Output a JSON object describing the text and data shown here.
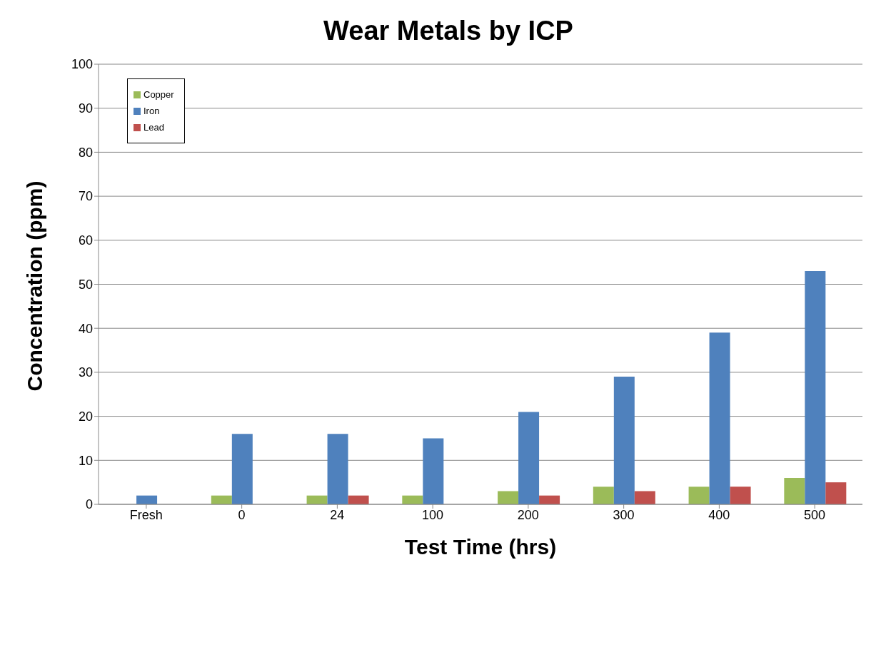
{
  "chart_data": {
    "type": "bar",
    "title": "Wear Metals by ICP",
    "xlabel": "Test Time (hrs)",
    "ylabel": "Concentration (ppm)",
    "categories": [
      "Fresh",
      "0",
      "24",
      "100",
      "200",
      "300",
      "400",
      "500"
    ],
    "series": [
      {
        "name": "Copper",
        "color": "#9bbb59",
        "values": [
          0,
          2,
          2,
          2,
          3,
          4,
          4,
          6
        ]
      },
      {
        "name": "Iron",
        "color": "#4f81bd",
        "values": [
          2,
          16,
          16,
          15,
          21,
          29,
          39,
          53
        ]
      },
      {
        "name": "Lead",
        "color": "#c0504d",
        "values": [
          0,
          0,
          2,
          0,
          2,
          3,
          4,
          5
        ]
      }
    ],
    "ylim": [
      0,
      100
    ],
    "yticks": [
      0,
      10,
      20,
      30,
      40,
      50,
      60,
      70,
      80,
      90,
      100
    ],
    "grid": "y",
    "legend": "top left"
  }
}
